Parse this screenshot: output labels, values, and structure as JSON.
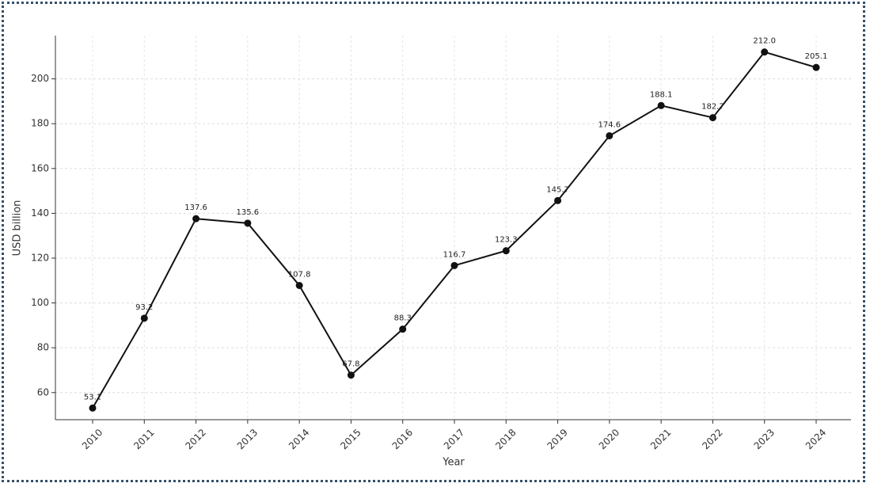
{
  "chart_data": {
    "type": "line",
    "x_label": "Year",
    "y_label": "USD billion",
    "categories": [
      "2010",
      "2011",
      "2012",
      "2013",
      "2014",
      "2015",
      "2016",
      "2017",
      "2018",
      "2019",
      "2020",
      "2021",
      "2022",
      "2023",
      "2024"
    ],
    "values": [
      53.1,
      93.2,
      137.6,
      135.6,
      107.8,
      67.8,
      88.3,
      116.7,
      123.3,
      145.7,
      174.6,
      188.1,
      182.7,
      212.0,
      205.1
    ],
    "value_labels": [
      "53.1",
      "93.2",
      "137.6",
      "135.6",
      "107.8",
      "67.8",
      "88.3",
      "116.7",
      "123.3",
      "145.7",
      "174.6",
      "188.1",
      "182.7",
      "212.0",
      "205.1"
    ],
    "color": "#111111",
    "ylim": [
      47.9,
      219.3
    ],
    "yticks": [
      60,
      80,
      100,
      120,
      140,
      160,
      180,
      200
    ],
    "grid": true
  }
}
